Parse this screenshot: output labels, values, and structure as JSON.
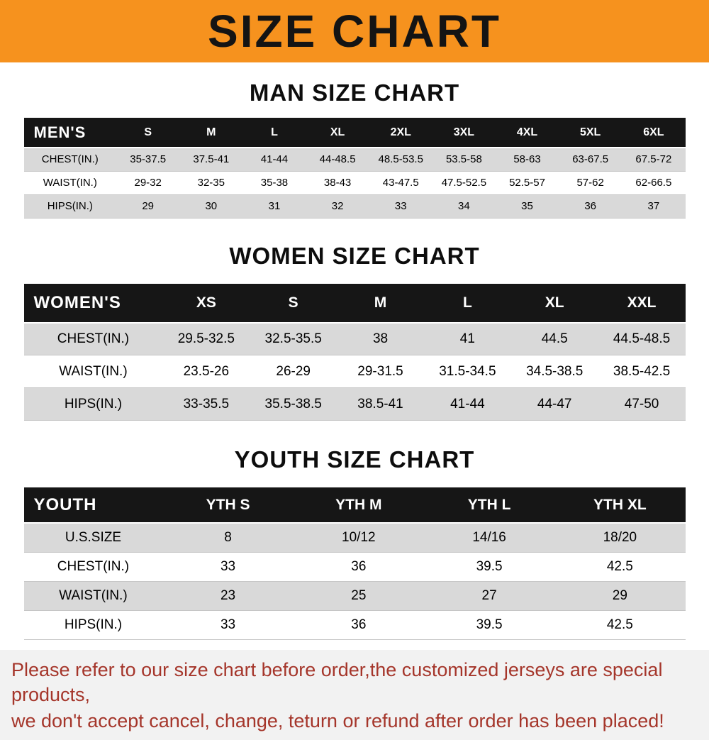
{
  "banner": {
    "title": "SIZE CHART"
  },
  "colors": {
    "banner_bg": "#f6921e",
    "header_bg": "#161616",
    "row_alt": "#d9d9d9",
    "disclaimer_bg": "#f2f2f2",
    "disclaimer_text": "#a5362b"
  },
  "disclaimer": {
    "line1": "Please refer to our size chart before order,the customized jerseys are special products,",
    "line2": "we don't accept cancel, change, teturn or refund after order has been placed!"
  },
  "chart_data": [
    {
      "type": "table",
      "title": "MAN SIZE CHART",
      "columns": [
        "MEN'S",
        "S",
        "M",
        "L",
        "XL",
        "2XL",
        "3XL",
        "4XL",
        "5XL",
        "6XL"
      ],
      "rows": [
        [
          "CHEST(IN.)",
          "35-37.5",
          "37.5-41",
          "41-44",
          "44-48.5",
          "48.5-53.5",
          "53.5-58",
          "58-63",
          "63-67.5",
          "67.5-72"
        ],
        [
          "WAIST(IN.)",
          "29-32",
          "32-35",
          "35-38",
          "38-43",
          "43-47.5",
          "47.5-52.5",
          "52.5-57",
          "57-62",
          "62-66.5"
        ],
        [
          "HIPS(IN.)",
          "29",
          "30",
          "31",
          "32",
          "33",
          "34",
          "35",
          "36",
          "37"
        ]
      ]
    },
    {
      "type": "table",
      "title": "WOMEN SIZE CHART",
      "columns": [
        "WOMEN'S",
        "XS",
        "S",
        "M",
        "L",
        "XL",
        "XXL"
      ],
      "rows": [
        [
          "CHEST(IN.)",
          "29.5-32.5",
          "32.5-35.5",
          "38",
          "41",
          "44.5",
          "44.5-48.5"
        ],
        [
          "WAIST(IN.)",
          "23.5-26",
          "26-29",
          "29-31.5",
          "31.5-34.5",
          "34.5-38.5",
          "38.5-42.5"
        ],
        [
          "HIPS(IN.)",
          "33-35.5",
          "35.5-38.5",
          "38.5-41",
          "41-44",
          "44-47",
          "47-50"
        ]
      ]
    },
    {
      "type": "table",
      "title": "YOUTH SIZE CHART",
      "columns": [
        "YOUTH",
        "YTH S",
        "YTH M",
        "YTH L",
        "YTH XL"
      ],
      "rows": [
        [
          "U.S.SIZE",
          "8",
          "10/12",
          "14/16",
          "18/20"
        ],
        [
          "CHEST(IN.)",
          "33",
          "36",
          "39.5",
          "42.5"
        ],
        [
          "WAIST(IN.)",
          "23",
          "25",
          "27",
          "29"
        ],
        [
          "HIPS(IN.)",
          "33",
          "36",
          "39.5",
          "42.5"
        ]
      ]
    }
  ]
}
